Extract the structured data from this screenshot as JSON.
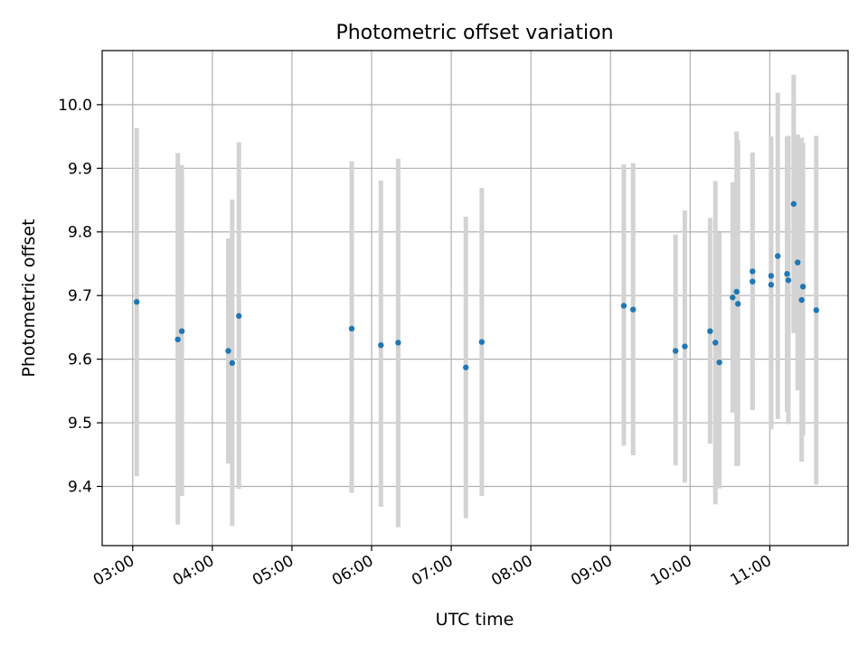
{
  "colors": {
    "point": "#1f77b4",
    "errorbar": "#d3d3d3",
    "grid": "#b0b0b0",
    "axis": "#000000"
  },
  "chart_data": {
    "type": "scatter",
    "title": "Photometric offset variation",
    "xlabel": "UTC time",
    "ylabel": "Photometric offset",
    "xlim": [
      "02:37",
      "11:59"
    ],
    "ylim": [
      9.307,
      10.085
    ],
    "x_ticks": [
      "03:00",
      "04:00",
      "05:00",
      "06:00",
      "07:00",
      "08:00",
      "09:00",
      "10:00",
      "11:00"
    ],
    "y_ticks": [
      "9.4",
      "9.5",
      "9.6",
      "9.7",
      "9.8",
      "9.9",
      "10.0"
    ],
    "y_tick_values": [
      9.4,
      9.5,
      9.6,
      9.7,
      9.8,
      9.9,
      10.0
    ],
    "grid": true,
    "series": [
      {
        "points": [
          {
            "t": "03:03",
            "y": 9.69,
            "lo": 9.416,
            "hi": 9.963
          },
          {
            "t": "03:34",
            "y": 9.631,
            "lo": 9.34,
            "hi": 9.924
          },
          {
            "t": "03:37",
            "y": 9.644,
            "lo": 9.385,
            "hi": 9.905
          },
          {
            "t": "04:12",
            "y": 9.613,
            "lo": 9.436,
            "hi": 9.79
          },
          {
            "t": "04:15",
            "y": 9.594,
            "lo": 9.338,
            "hi": 9.851
          },
          {
            "t": "04:20",
            "y": 9.668,
            "lo": 9.396,
            "hi": 9.941
          },
          {
            "t": "05:45",
            "y": 9.648,
            "lo": 9.39,
            "hi": 9.911
          },
          {
            "t": "06:07",
            "y": 9.622,
            "lo": 9.368,
            "hi": 9.881
          },
          {
            "t": "06:20",
            "y": 9.626,
            "lo": 9.336,
            "hi": 9.915
          },
          {
            "t": "07:11",
            "y": 9.587,
            "lo": 9.35,
            "hi": 9.824
          },
          {
            "t": "07:23",
            "y": 9.627,
            "lo": 9.385,
            "hi": 9.869
          },
          {
            "t": "09:10",
            "y": 9.684,
            "lo": 9.464,
            "hi": 9.906
          },
          {
            "t": "09:17",
            "y": 9.678,
            "lo": 9.449,
            "hi": 9.908
          },
          {
            "t": "09:49",
            "y": 9.613,
            "lo": 9.433,
            "hi": 9.796
          },
          {
            "t": "09:56",
            "y": 9.62,
            "lo": 9.406,
            "hi": 9.834
          },
          {
            "t": "10:15",
            "y": 9.644,
            "lo": 9.467,
            "hi": 9.822
          },
          {
            "t": "10:19",
            "y": 9.626,
            "lo": 9.372,
            "hi": 9.88
          },
          {
            "t": "10:22",
            "y": 9.595,
            "lo": 9.397,
            "hi": 9.799
          },
          {
            "t": "10:32",
            "y": 9.697,
            "lo": 9.516,
            "hi": 9.878
          },
          {
            "t": "10:35",
            "y": 9.706,
            "lo": 9.432,
            "hi": 9.958
          },
          {
            "t": "10:36",
            "y": 9.687,
            "lo": 9.433,
            "hi": 9.944
          },
          {
            "t": "10:47",
            "y": 9.722,
            "lo": 9.52,
            "hi": 9.925
          },
          {
            "t": "10:47",
            "y": 9.738,
            "lo": 9.52,
            "hi": 9.92
          },
          {
            "t": "11:01",
            "y": 9.731,
            "lo": 9.49,
            "hi": 9.95
          },
          {
            "t": "11:01",
            "y": 9.717,
            "lo": 9.49,
            "hi": 9.945
          },
          {
            "t": "11:06",
            "y": 9.762,
            "lo": 9.506,
            "hi": 10.019
          },
          {
            "t": "11:13",
            "y": 9.734,
            "lo": 9.517,
            "hi": 9.95
          },
          {
            "t": "11:14",
            "y": 9.724,
            "lo": 9.498,
            "hi": 9.951
          },
          {
            "t": "11:18",
            "y": 9.844,
            "lo": 9.641,
            "hi": 10.047
          },
          {
            "t": "11:21",
            "y": 9.752,
            "lo": 9.551,
            "hi": 9.953
          },
          {
            "t": "11:24",
            "y": 9.693,
            "lo": 9.439,
            "hi": 9.948
          },
          {
            "t": "11:25",
            "y": 9.714,
            "lo": 9.48,
            "hi": 9.94
          },
          {
            "t": "11:35",
            "y": 9.677,
            "lo": 9.403,
            "hi": 9.951
          }
        ]
      }
    ]
  }
}
